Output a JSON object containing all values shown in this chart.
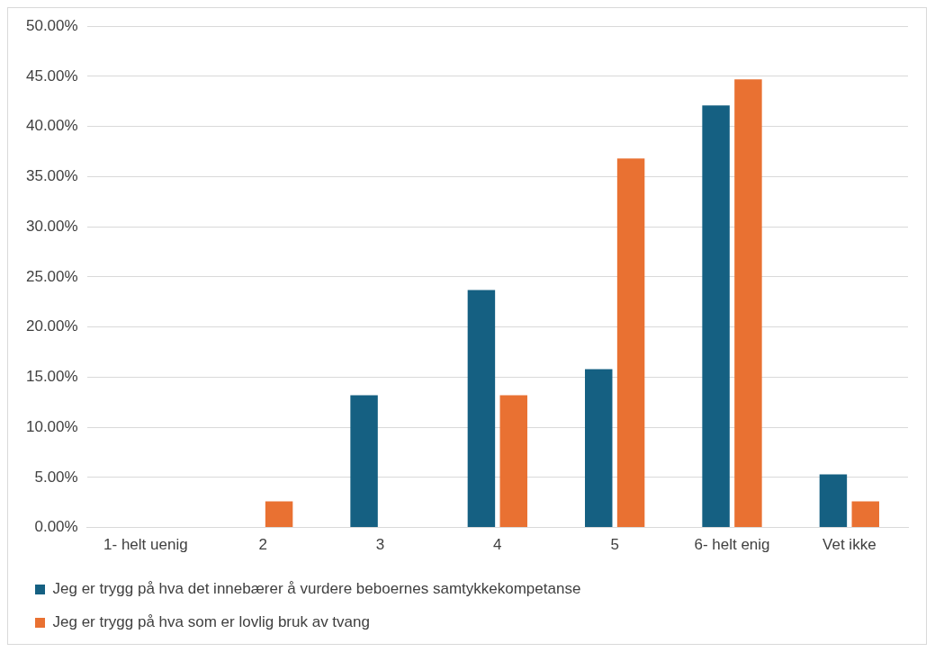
{
  "chart_data": {
    "type": "bar",
    "categories": [
      "1- helt uenig",
      "2",
      "3",
      "4",
      "5",
      "6- helt enig",
      "Vet ikke"
    ],
    "series": [
      {
        "name": "Jeg er trygg på hva det innebærer å vurdere beboernes samtykkekompetanse",
        "color": "#156082",
        "values": [
          0,
          0,
          13.2,
          23.7,
          15.8,
          42.1,
          5.3
        ]
      },
      {
        "name": "Jeg er trygg på hva som er lovlig bruk av tvang",
        "color": "#e97132",
        "values": [
          0,
          2.6,
          0,
          13.2,
          36.8,
          44.7,
          2.6
        ]
      }
    ],
    "ylim": [
      0,
      50
    ],
    "yticks": [
      {
        "value": 0,
        "label": "0.00%"
      },
      {
        "value": 5,
        "label": "5.00%"
      },
      {
        "value": 10,
        "label": "10.00%"
      },
      {
        "value": 15,
        "label": "15.00%"
      },
      {
        "value": 20,
        "label": "20.00%"
      },
      {
        "value": 25,
        "label": "25.00%"
      },
      {
        "value": 30,
        "label": "30.00%"
      },
      {
        "value": 35,
        "label": "35.00%"
      },
      {
        "value": 40,
        "label": "40.00%"
      },
      {
        "value": 45,
        "label": "45.00%"
      },
      {
        "value": 50,
        "label": "50.00%"
      }
    ],
    "grid": "y",
    "legend": "bottom"
  }
}
